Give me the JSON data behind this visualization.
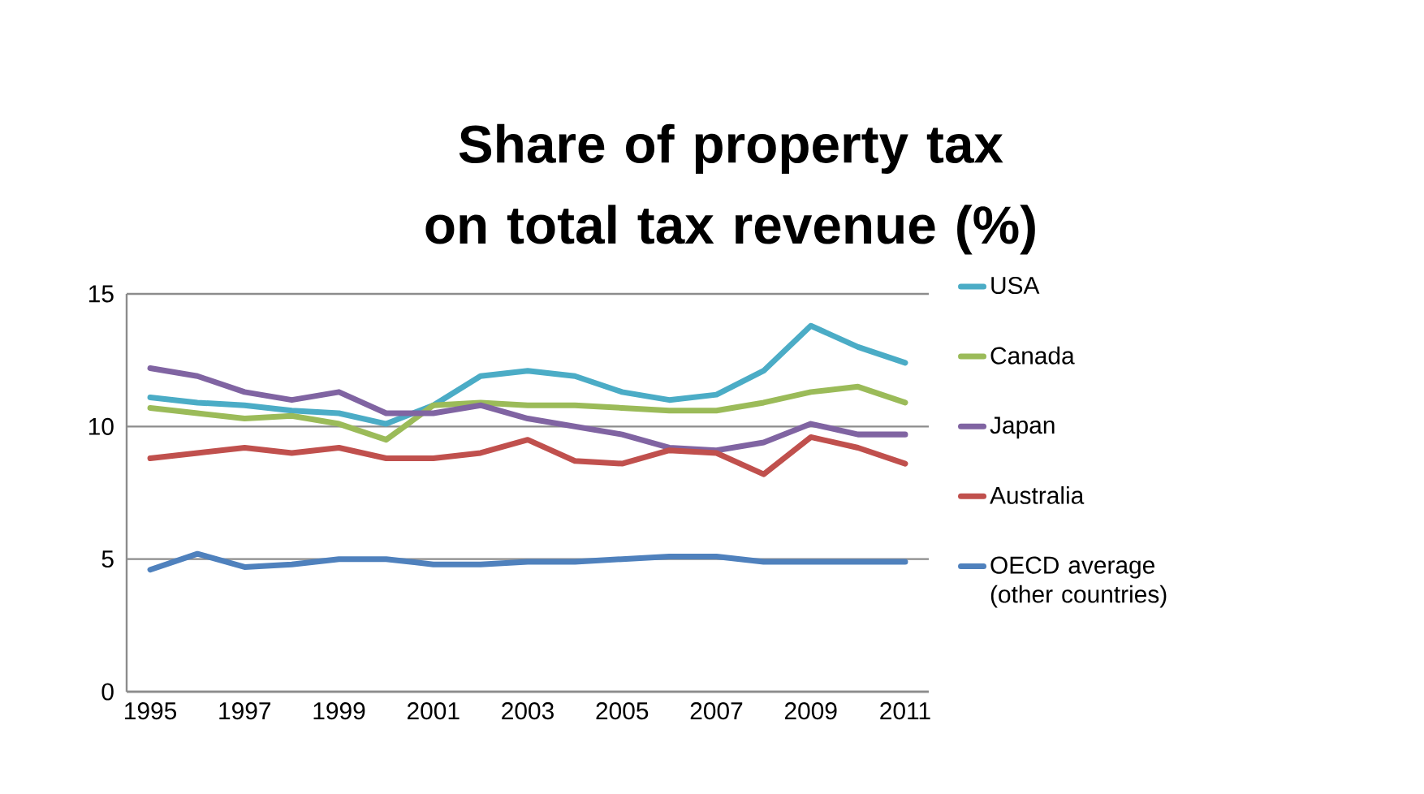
{
  "chart_data": {
    "type": "line",
    "title": "Share of property tax on total tax revenue (%)",
    "categories": [
      "1995",
      null,
      "1997",
      null,
      "1999",
      null,
      "2001",
      null,
      "2003",
      null,
      "2005",
      null,
      "2007",
      null,
      "2009",
      null,
      "2011"
    ],
    "ylim": [
      0,
      15
    ],
    "yticks": [
      0,
      5,
      10,
      15
    ],
    "grid": "y",
    "legend": "right",
    "line_style": "solid",
    "marker": "none",
    "series": [
      {
        "name": "USA",
        "color": "#4bacc6",
        "values": [
          11.1,
          10.9,
          10.8,
          10.6,
          10.5,
          10.1,
          10.8,
          11.9,
          12.1,
          11.9,
          11.3,
          11.0,
          11.2,
          12.1,
          13.8,
          13.0,
          12.4
        ]
      },
      {
        "name": "Canada",
        "color": "#9bbb59",
        "values": [
          10.7,
          10.5,
          10.3,
          10.4,
          10.1,
          9.5,
          10.8,
          10.9,
          10.8,
          10.8,
          10.7,
          10.6,
          10.6,
          10.9,
          11.3,
          11.5,
          10.9
        ]
      },
      {
        "name": "Japan",
        "color": "#8064a2",
        "values": [
          12.2,
          11.9,
          11.3,
          11.0,
          11.3,
          10.5,
          10.5,
          10.8,
          10.3,
          10.0,
          9.7,
          9.2,
          9.1,
          9.4,
          10.1,
          9.7,
          9.7
        ]
      },
      {
        "name": "Australia",
        "color": "#c0504d",
        "values": [
          8.8,
          9.0,
          9.2,
          9.0,
          9.2,
          8.8,
          8.8,
          9.0,
          9.5,
          8.7,
          8.6,
          9.1,
          9.0,
          8.2,
          9.6,
          9.2,
          8.6
        ]
      },
      {
        "name": "OECD average (other countries)",
        "color": "#4f81bd",
        "values": [
          4.6,
          5.2,
          4.7,
          4.8,
          5.0,
          5.0,
          4.8,
          4.8,
          4.9,
          4.9,
          5.0,
          5.1,
          5.1,
          4.9,
          4.9,
          4.9,
          4.9
        ]
      }
    ]
  }
}
